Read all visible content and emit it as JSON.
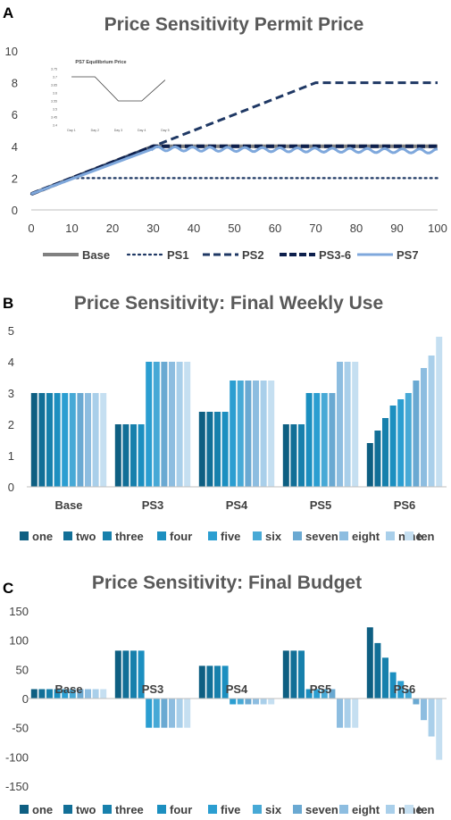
{
  "panels": {
    "a": "A",
    "b": "B",
    "c": "C"
  },
  "chart_data": [
    {
      "type": "line",
      "title": "Price Sensitivity Permit Price",
      "xlim": [
        0,
        100
      ],
      "ylim": [
        0,
        10
      ],
      "x_ticks": [
        "0",
        "10",
        "20",
        "30",
        "40",
        "50",
        "60",
        "70",
        "80",
        "90",
        "100"
      ],
      "y_ticks": [
        "0",
        "2",
        "4",
        "6",
        "8",
        "10"
      ],
      "legend_position": "bottom",
      "series": [
        {
          "name": "Base",
          "style": "solid-thick",
          "color": "#808080",
          "points": [
            [
              0,
              1
            ],
            [
              30,
              4
            ],
            [
              100,
              4
            ]
          ]
        },
        {
          "name": "PS1",
          "style": "dotted",
          "color": "#1f3864",
          "points": [
            [
              0,
              1
            ],
            [
              10,
              2
            ],
            [
              100,
              2
            ]
          ]
        },
        {
          "name": "PS2",
          "style": "dashed",
          "color": "#1f3864",
          "points": [
            [
              0,
              1
            ],
            [
              30,
              4
            ],
            [
              70,
              8
            ],
            [
              100,
              8
            ]
          ]
        },
        {
          "name": "PS3-6",
          "style": "dashed-thick",
          "color": "#0d1f4c",
          "points": [
            [
              0,
              1
            ],
            [
              30,
              4
            ],
            [
              100,
              4
            ]
          ]
        },
        {
          "name": "PS7",
          "style": "wavy",
          "color": "#7fa8dc",
          "points": [
            [
              0,
              1
            ],
            [
              30,
              3.85
            ],
            [
              100,
              3.7
            ]
          ]
        }
      ],
      "inset": {
        "type": "line",
        "title": "PS7 Equilibrium Price",
        "categories": [
          "Day 1",
          "Day 2",
          "Day 3",
          "Day 4",
          "Day 5"
        ],
        "values": [
          3.7,
          3.7,
          3.55,
          3.55,
          3.68
        ],
        "y_ticks": [
          "3.75",
          "3.7",
          "3.65",
          "3.6",
          "3.55",
          "3.5",
          "3.45",
          "3.4"
        ],
        "ylim": [
          3.4,
          3.75
        ]
      }
    },
    {
      "type": "bar",
      "title": "Price Sensitivity: Final Weekly Use",
      "categories": [
        "Base",
        "PS3",
        "PS4",
        "PS5",
        "PS6"
      ],
      "ylim": [
        0,
        5
      ],
      "y_ticks": [
        "0",
        "1",
        "2",
        "3",
        "4",
        "5"
      ],
      "legend_position": "bottom",
      "series": [
        {
          "name": "one",
          "color": "#0e5f82",
          "values": [
            3,
            2,
            2.4,
            2,
            1.4
          ]
        },
        {
          "name": "two",
          "color": "#126f97",
          "values": [
            3,
            2,
            2.4,
            2,
            1.8
          ]
        },
        {
          "name": "three",
          "color": "#1780ac",
          "values": [
            3,
            2,
            2.4,
            2,
            2.2
          ]
        },
        {
          "name": "four",
          "color": "#1c8fc0",
          "values": [
            3,
            2,
            2.4,
            3,
            2.6
          ]
        },
        {
          "name": "five",
          "color": "#2b9ed1",
          "values": [
            3,
            4,
            3.4,
            3,
            2.8
          ]
        },
        {
          "name": "six",
          "color": "#47a9d6",
          "values": [
            3,
            4,
            3.4,
            3,
            3.0
          ]
        },
        {
          "name": "seven",
          "color": "#6aa9d2",
          "values": [
            3,
            4,
            3.4,
            3,
            3.4
          ]
        },
        {
          "name": "eight",
          "color": "#8dbde0",
          "values": [
            3,
            4,
            3.4,
            4,
            3.8
          ]
        },
        {
          "name": "nine",
          "color": "#a9cfea",
          "values": [
            3,
            4,
            3.4,
            4,
            4.2
          ]
        },
        {
          "name": "ten",
          "color": "#c5dff1",
          "values": [
            3,
            4,
            3.4,
            4,
            4.8
          ]
        }
      ]
    },
    {
      "type": "bar",
      "title": "Price Sensitivity: Final Budget",
      "categories": [
        "Base",
        "PS3",
        "PS4",
        "PS5",
        "PS6"
      ],
      "ylim": [
        -150,
        150
      ],
      "y_ticks": [
        "150",
        "100",
        "50",
        "0",
        "-50",
        "-100",
        "-150"
      ],
      "legend_position": "bottom",
      "series": [
        {
          "name": "one",
          "color": "#0e5f82",
          "values": [
            16,
            82,
            56,
            82,
            122
          ]
        },
        {
          "name": "two",
          "color": "#126f97",
          "values": [
            16,
            82,
            56,
            82,
            95
          ]
        },
        {
          "name": "three",
          "color": "#1780ac",
          "values": [
            16,
            82,
            56,
            82,
            70
          ]
        },
        {
          "name": "four",
          "color": "#1c8fc0",
          "values": [
            16,
            82,
            56,
            16,
            45
          ]
        },
        {
          "name": "five",
          "color": "#2b9ed1",
          "values": [
            16,
            -50,
            -10,
            16,
            30
          ]
        },
        {
          "name": "six",
          "color": "#47a9d6",
          "values": [
            16,
            -50,
            -10,
            16,
            16
          ]
        },
        {
          "name": "seven",
          "color": "#6aa9d2",
          "values": [
            16,
            -50,
            -10,
            16,
            -10
          ]
        },
        {
          "name": "eight",
          "color": "#8dbde0",
          "values": [
            16,
            -50,
            -10,
            -50,
            -37
          ]
        },
        {
          "name": "nine",
          "color": "#a9cfea",
          "values": [
            16,
            -50,
            -10,
            -50,
            -65
          ]
        },
        {
          "name": "ten",
          "color": "#c5dff1",
          "values": [
            16,
            -50,
            -10,
            -50,
            -105
          ]
        }
      ]
    }
  ]
}
